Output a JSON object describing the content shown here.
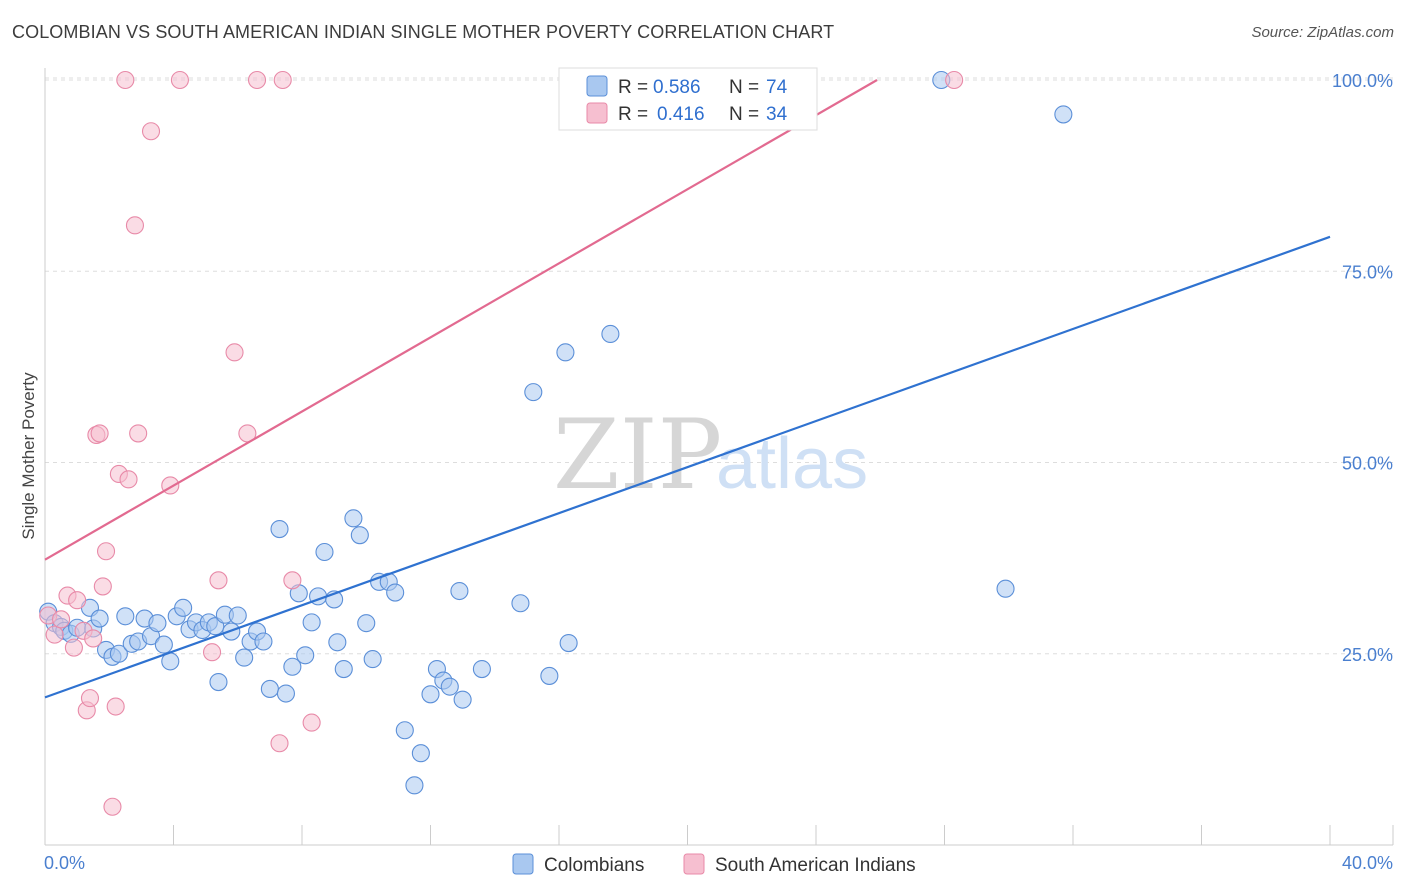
{
  "header": {
    "title": "COLOMBIAN VS SOUTH AMERICAN INDIAN SINGLE MOTHER POVERTY CORRELATION CHART",
    "source": "Source: ZipAtlas.com"
  },
  "watermark": {
    "zip": "ZIP",
    "atlas": "atlas"
  },
  "colors": {
    "blue_fill": "#a9c8f0",
    "blue_stroke": "#5b8fd8",
    "blue_line": "#2f72d0",
    "pink_fill": "#f6bfd0",
    "pink_stroke": "#e88aa8",
    "pink_line": "#e26a90",
    "grid": "#dddddd",
    "tick_label": "#4a7fcf"
  },
  "legend": {
    "rows": [
      {
        "r_label": "R =",
        "r_value": "0.586",
        "n_label": "N =",
        "n_value": "74"
      },
      {
        "r_label": "R =",
        "r_value": "0.416",
        "n_label": "N =",
        "n_value": "34"
      }
    ]
  },
  "chart_data": {
    "type": "scatter",
    "title": "COLOMBIAN VS SOUTH AMERICAN INDIAN SINGLE MOTHER POVERTY CORRELATION CHART",
    "xlabel": "",
    "ylabel": "Single Mother Poverty",
    "xlim": [
      0,
      40
    ],
    "ylim": [
      0,
      102
    ],
    "x_tick_labels": [
      "0.0%",
      "40.0%"
    ],
    "y_ticks": [
      25,
      50,
      75,
      100
    ],
    "y_tick_labels": [
      "25.0%",
      "50.0%",
      "75.0%",
      "100.0%"
    ],
    "grid": true,
    "legend_placement": "top-center",
    "series": [
      {
        "name": "Colombians",
        "r": 0.586,
        "n": 74,
        "trend": {
          "x": [
            0,
            40
          ],
          "y": [
            19.3,
            79.5
          ]
        },
        "points": [
          [
            0.1,
            30.5
          ],
          [
            0.3,
            29.0
          ],
          [
            0.5,
            28.5
          ],
          [
            0.6,
            28.0
          ],
          [
            0.8,
            27.6
          ],
          [
            1.0,
            28.4
          ],
          [
            1.4,
            31.0
          ],
          [
            1.5,
            28.3
          ],
          [
            1.7,
            29.6
          ],
          [
            1.9,
            25.5
          ],
          [
            2.1,
            24.6
          ],
          [
            2.3,
            25.0
          ],
          [
            2.5,
            29.9
          ],
          [
            2.7,
            26.3
          ],
          [
            2.9,
            26.6
          ],
          [
            3.1,
            29.6
          ],
          [
            3.3,
            27.3
          ],
          [
            3.5,
            29.0
          ],
          [
            3.7,
            26.2
          ],
          [
            3.9,
            24.0
          ],
          [
            4.1,
            29.9
          ],
          [
            4.3,
            31.0
          ],
          [
            4.5,
            28.2
          ],
          [
            4.7,
            29.1
          ],
          [
            4.9,
            28.1
          ],
          [
            5.1,
            29.1
          ],
          [
            5.3,
            28.6
          ],
          [
            5.4,
            21.3
          ],
          [
            5.6,
            30.1
          ],
          [
            5.8,
            27.9
          ],
          [
            6.0,
            30.0
          ],
          [
            6.2,
            24.5
          ],
          [
            6.4,
            26.6
          ],
          [
            6.6,
            27.9
          ],
          [
            6.8,
            26.6
          ],
          [
            7.0,
            20.4
          ],
          [
            7.3,
            41.3
          ],
          [
            7.5,
            19.8
          ],
          [
            7.7,
            23.3
          ],
          [
            7.9,
            32.9
          ],
          [
            8.1,
            24.8
          ],
          [
            8.3,
            29.1
          ],
          [
            8.5,
            32.5
          ],
          [
            8.7,
            38.3
          ],
          [
            9.0,
            32.1
          ],
          [
            9.1,
            26.5
          ],
          [
            9.3,
            23.0
          ],
          [
            9.6,
            42.7
          ],
          [
            9.8,
            40.5
          ],
          [
            10.0,
            29.0
          ],
          [
            10.2,
            24.3
          ],
          [
            10.4,
            34.4
          ],
          [
            10.7,
            34.4
          ],
          [
            10.9,
            33.0
          ],
          [
            11.2,
            15.0
          ],
          [
            11.5,
            7.8
          ],
          [
            11.7,
            12.0
          ],
          [
            12.0,
            19.7
          ],
          [
            12.2,
            23.0
          ],
          [
            12.4,
            21.5
          ],
          [
            12.6,
            20.7
          ],
          [
            12.9,
            33.2
          ],
          [
            13.0,
            19.0
          ],
          [
            13.6,
            23.0
          ],
          [
            14.8,
            31.6
          ],
          [
            15.7,
            22.1
          ],
          [
            15.2,
            59.2
          ],
          [
            16.2,
            64.4
          ],
          [
            16.3,
            26.4
          ],
          [
            17.6,
            66.8
          ],
          [
            22.6,
            100.0
          ],
          [
            27.9,
            100.0
          ],
          [
            29.9,
            33.5
          ],
          [
            31.7,
            95.5
          ]
        ]
      },
      {
        "name": "South American Indians",
        "r": 0.416,
        "n": 34,
        "trend": {
          "x": [
            0,
            25.9
          ],
          "y": [
            37.3,
            100.0
          ]
        },
        "points": [
          [
            0.1,
            30.0
          ],
          [
            0.3,
            27.5
          ],
          [
            0.5,
            29.5
          ],
          [
            0.7,
            32.6
          ],
          [
            0.9,
            25.8
          ],
          [
            1.0,
            32.0
          ],
          [
            1.2,
            28.0
          ],
          [
            1.3,
            17.6
          ],
          [
            1.4,
            19.2
          ],
          [
            1.5,
            27.0
          ],
          [
            1.6,
            53.6
          ],
          [
            1.7,
            53.8
          ],
          [
            1.8,
            33.8
          ],
          [
            1.9,
            38.4
          ],
          [
            2.1,
            5.0
          ],
          [
            2.2,
            18.1
          ],
          [
            2.3,
            48.5
          ],
          [
            2.5,
            100.0
          ],
          [
            2.6,
            47.8
          ],
          [
            2.8,
            81.0
          ],
          [
            2.9,
            53.8
          ],
          [
            3.3,
            93.3
          ],
          [
            3.9,
            47.0
          ],
          [
            4.2,
            100.0
          ],
          [
            5.2,
            25.2
          ],
          [
            5.4,
            34.6
          ],
          [
            5.9,
            64.4
          ],
          [
            6.3,
            53.8
          ],
          [
            6.6,
            100.0
          ],
          [
            7.3,
            13.3
          ],
          [
            7.4,
            100.0
          ],
          [
            7.7,
            34.6
          ],
          [
            8.3,
            16.0
          ],
          [
            28.3,
            100.0
          ]
        ]
      }
    ]
  },
  "bottom_legend": {
    "items": [
      "Colombians",
      "South American Indians"
    ]
  }
}
